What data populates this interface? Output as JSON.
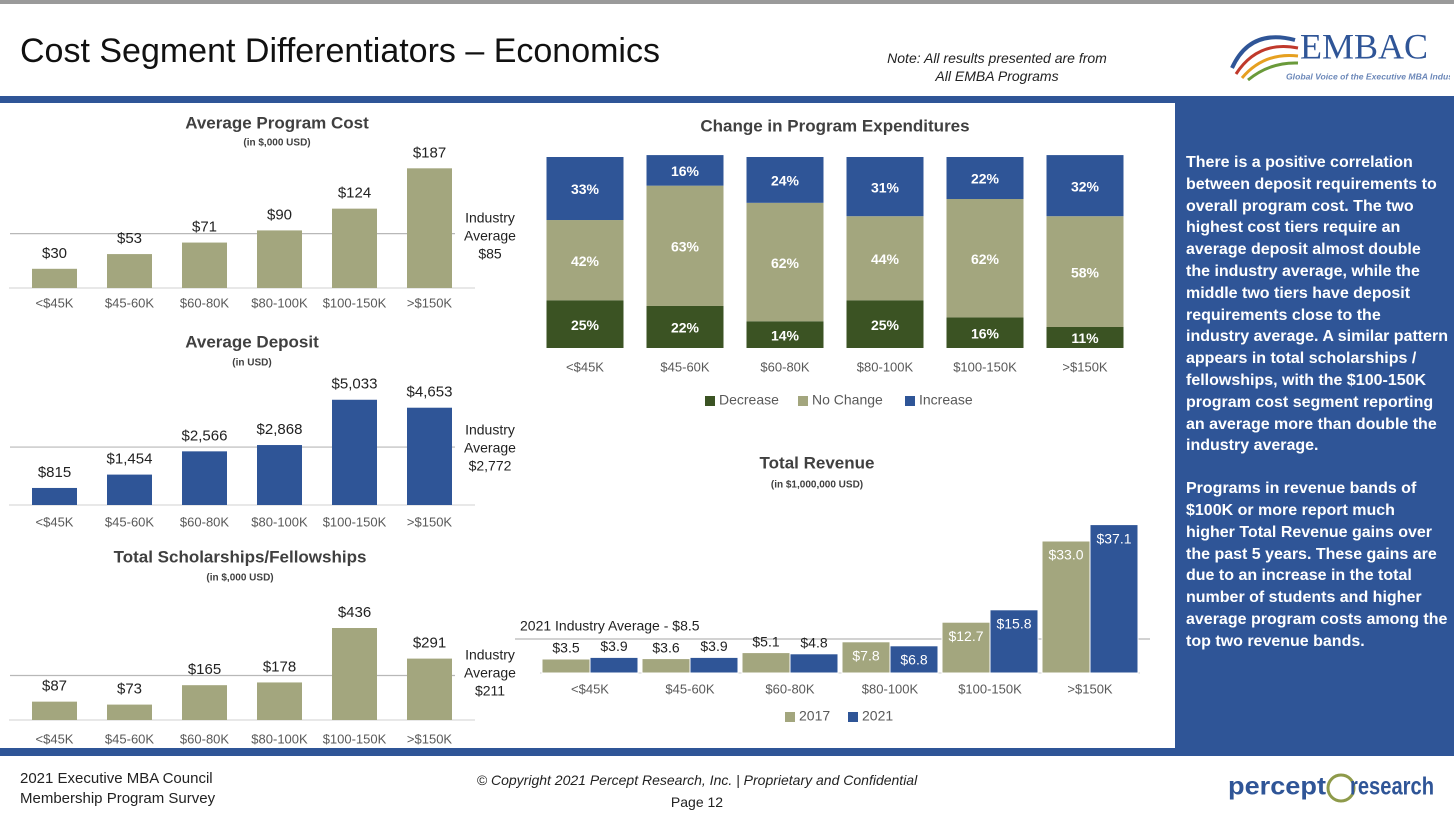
{
  "header": {
    "title": "Cost Segment Differentiators – Economics",
    "note": [
      "Note: All results presented are from",
      "All EMBA Programs"
    ],
    "logo": "EMBAC",
    "logo_tagline": "Global Voice of the Executive MBA Industry"
  },
  "chart_data": [
    {
      "type": "bar",
      "title": "Average Program Cost",
      "subtitle": "(in $,000 USD)",
      "categories": [
        "<$45K",
        "$45-60K",
        "$60-80K",
        "$80-100K",
        "$100-150K",
        ">$150K"
      ],
      "values": [
        30,
        53,
        71,
        90,
        124,
        187
      ],
      "value_labels": [
        "$30",
        "$53",
        "$71",
        "$90",
        "$124",
        "$187"
      ],
      "color": "#a3a67e",
      "ylim": [
        0,
        200
      ],
      "reference": {
        "value": 85,
        "label": [
          "Industry",
          "Average",
          "$85"
        ]
      }
    },
    {
      "type": "bar",
      "title": "Average Deposit",
      "subtitle": "(in USD)",
      "categories": [
        "<$45K",
        "$45-60K",
        "$60-80K",
        "$80-100K",
        "$100-150K",
        ">$150K"
      ],
      "values": [
        815,
        1454,
        2566,
        2868,
        5033,
        4653
      ],
      "value_labels": [
        "$815",
        "$1,454",
        "$2,566",
        "$2,868",
        "$5,033",
        "$4,653"
      ],
      "color": "#2f5597",
      "ylim": [
        0,
        5500
      ],
      "reference": {
        "value": 2772,
        "label": [
          "Industry",
          "Average",
          "$2,772"
        ]
      }
    },
    {
      "type": "bar",
      "title": "Total Scholarships/Fellowships",
      "subtitle": "(in $,000 USD)",
      "categories": [
        "<$45K",
        "$45-60K",
        "$60-80K",
        "$80-100K",
        "$100-150K",
        ">$150K"
      ],
      "values": [
        87,
        73,
        165,
        178,
        436,
        291
      ],
      "value_labels": [
        "$87",
        "$73",
        "$165",
        "$178",
        "$436",
        "$291"
      ],
      "color": "#a3a67e",
      "ylim": [
        0,
        500
      ],
      "reference": {
        "value": 211,
        "label": [
          "Industry",
          "Average",
          "$211"
        ]
      }
    },
    {
      "type": "stacked_bar",
      "title": "Change in Program Expenditures",
      "categories": [
        "<$45K",
        "$45-60K",
        "$60-80K",
        "$80-100K",
        "$100-150K",
        ">$150K"
      ],
      "series": [
        {
          "name": "Decrease",
          "color": "#3b5323",
          "values": [
            25,
            22,
            14,
            25,
            16,
            11
          ],
          "value_labels": [
            "25%",
            "22%",
            "14%",
            "25%",
            "16%",
            "11%"
          ]
        },
        {
          "name": "No Change",
          "color": "#a3a67e",
          "values": [
            42,
            63,
            62,
            44,
            62,
            58
          ],
          "value_labels": [
            "42%",
            "63%",
            "62%",
            "44%",
            "62%",
            "58%"
          ]
        },
        {
          "name": "Increase",
          "color": "#2f5597",
          "values": [
            33,
            16,
            24,
            31,
            22,
            32
          ],
          "value_labels": [
            "33%",
            "16%",
            "24%",
            "31%",
            "22%",
            "32%"
          ]
        }
      ],
      "ylim": [
        0,
        100
      ],
      "legend": "bottom"
    },
    {
      "type": "grouped_bar",
      "title": "Total Revenue",
      "subtitle": "(in $1,000,000 USD)",
      "categories": [
        "<$45K",
        "$45-60K",
        "$60-80K",
        "$80-100K",
        "$100-150K",
        ">$150K"
      ],
      "series": [
        {
          "name": "2017",
          "color": "#a3a67e",
          "values": [
            3.5,
            3.6,
            5.1,
            7.8,
            12.7,
            33.0
          ],
          "value_labels": [
            "$3.5",
            "$3.6",
            "$5.1",
            "$7.8",
            "$12.7",
            "$33.0"
          ]
        },
        {
          "name": "2021",
          "color": "#2f5597",
          "values": [
            3.9,
            3.9,
            4.8,
            6.8,
            15.8,
            37.1
          ],
          "value_labels": [
            "$3.9",
            "$3.9",
            "$4.8",
            "$6.8",
            "$15.8",
            "$37.1"
          ]
        }
      ],
      "ylim": [
        0,
        40
      ],
      "reference": {
        "value": 8.5,
        "label": "2021 Industry Average - $8.5"
      },
      "legend": "bottom"
    }
  ],
  "sidebar": [
    "There is a positive correlation between deposit requirements to overall program cost. The two highest cost tiers require an average deposit almost double the industry average, while the middle two tiers have deposit requirements close to the industry average. A similar pattern appears in total scholarships / fellowships, with the $100-150K program cost segment reporting an average more than double the industry average.",
    "Programs in revenue bands of $100K or more report much higher Total Revenue gains over the past 5 years. These gains are due to an increase in the total number of students and higher average program costs among the top two revenue bands."
  ],
  "footer": {
    "left": [
      "2021 Executive MBA Council",
      "Membership Program Survey"
    ],
    "copyright": "© Copyright 2021 Percept Research, Inc. | Proprietary and Confidential",
    "page": "Page 12",
    "logo": [
      "percept",
      "research"
    ]
  }
}
